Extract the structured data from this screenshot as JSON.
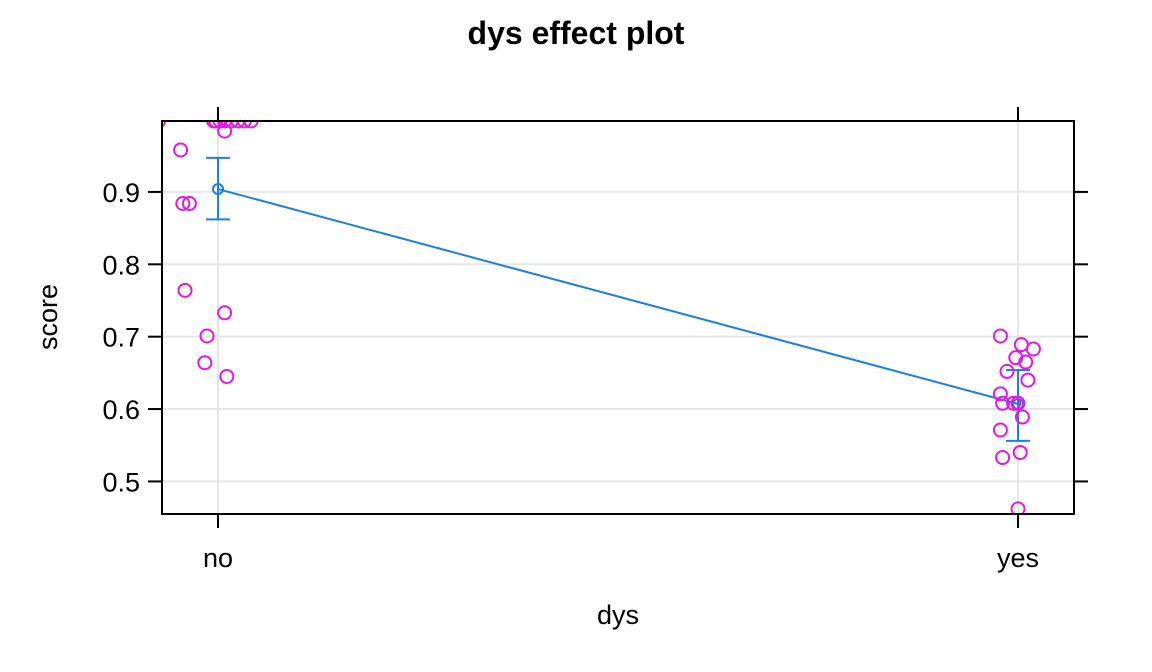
{
  "chart_data": {
    "type": "scatter",
    "title": "dys effect plot",
    "xlabel": "dys",
    "ylabel": "score",
    "categories": [
      "no",
      "yes"
    ],
    "yticks": [
      "0.5",
      "0.6",
      "0.7",
      "0.8",
      "0.9"
    ],
    "ylim": [
      0.455,
      0.998
    ],
    "grid": true,
    "effect": {
      "fit": [
        0.904,
        0.607
      ],
      "lower": [
        0.862,
        0.556
      ],
      "upper": [
        0.947,
        0.654
      ]
    },
    "residuals": [
      {
        "category": "no",
        "jitter": -0.27,
        "y": 0.998
      },
      {
        "category": "no",
        "jitter": -0.17,
        "y": 0.958
      },
      {
        "category": "no",
        "jitter": -0.16,
        "y": 0.884
      },
      {
        "category": "no",
        "jitter": -0.13,
        "y": 0.884
      },
      {
        "category": "no",
        "jitter": -0.15,
        "y": 0.764
      },
      {
        "category": "no",
        "jitter": -0.05,
        "y": 0.701
      },
      {
        "category": "no",
        "jitter": -0.06,
        "y": 0.664
      },
      {
        "category": "no",
        "jitter": 0.03,
        "y": 0.984
      },
      {
        "category": "no",
        "jitter": 0.03,
        "y": 0.733
      },
      {
        "category": "no",
        "jitter": 0.04,
        "y": 0.645
      },
      {
        "category": "no",
        "jitter": -0.02,
        "y": 0.998
      },
      {
        "category": "no",
        "jitter": -0.01,
        "y": 0.998
      },
      {
        "category": "no",
        "jitter": 0.01,
        "y": 0.998
      },
      {
        "category": "no",
        "jitter": 0.03,
        "y": 0.998
      },
      {
        "category": "no",
        "jitter": 0.06,
        "y": 0.998
      },
      {
        "category": "no",
        "jitter": 0.09,
        "y": 0.998
      },
      {
        "category": "no",
        "jitter": 0.12,
        "y": 0.998
      },
      {
        "category": "no",
        "jitter": 0.15,
        "y": 0.998
      },
      {
        "category": "yes",
        "jitter": -0.08,
        "y": 0.701
      },
      {
        "category": "yes",
        "jitter": -0.08,
        "y": 0.621
      },
      {
        "category": "yes",
        "jitter": -0.07,
        "y": 0.608
      },
      {
        "category": "yes",
        "jitter": -0.08,
        "y": 0.571
      },
      {
        "category": "yes",
        "jitter": -0.07,
        "y": 0.533
      },
      {
        "category": "yes",
        "jitter": -0.05,
        "y": 0.652
      },
      {
        "category": "yes",
        "jitter": -0.02,
        "y": 0.608
      },
      {
        "category": "yes",
        "jitter": -0.01,
        "y": 0.671
      },
      {
        "category": "yes",
        "jitter": 0.0,
        "y": 0.608
      },
      {
        "category": "yes",
        "jitter": 0.015,
        "y": 0.689
      },
      {
        "category": "yes",
        "jitter": 0.02,
        "y": 0.589
      },
      {
        "category": "yes",
        "jitter": 0.01,
        "y": 0.54
      },
      {
        "category": "yes",
        "jitter": 0.035,
        "y": 0.665
      },
      {
        "category": "yes",
        "jitter": 0.045,
        "y": 0.64
      },
      {
        "category": "yes",
        "jitter": 0.07,
        "y": 0.683
      },
      {
        "category": "yes",
        "jitter": 0.0,
        "y": 0.462
      }
    ],
    "colors": {
      "effect": "#1e7fe0",
      "points": "#e31ae3",
      "grid": "#e6e6e6",
      "frame": "#000000"
    }
  }
}
